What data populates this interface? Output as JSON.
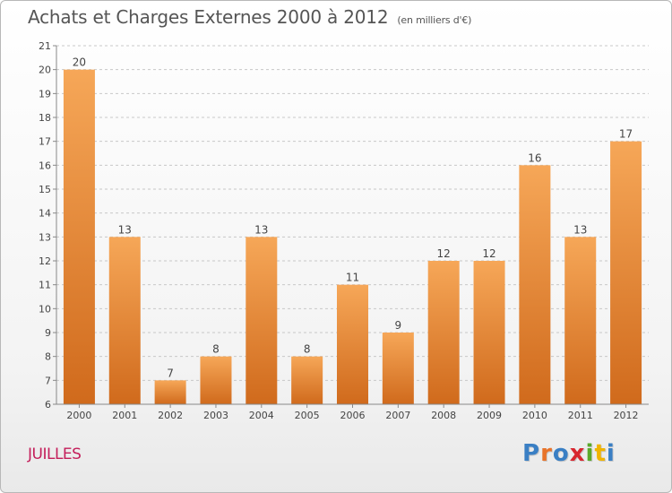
{
  "title": "Achats et Charges Externes 2000 à 2012",
  "subtitle": "(en milliers d'€)",
  "commune": "JUILLES",
  "logo": {
    "text": "Proxiti",
    "colors": [
      "#3a7fc4",
      "#e8732a",
      "#3a7fc4",
      "#d8262f",
      "#5aa92a",
      "#f0b400",
      "#3a7fc4"
    ]
  },
  "colors": {
    "bar_top": "#f6a758",
    "bar_bottom": "#d06a1c",
    "grid": "#c8c8c8",
    "text": "#444444"
  },
  "chart_data": {
    "type": "bar",
    "title": "Achats et Charges Externes 2000 à 2012",
    "subtitle": "(en milliers d'€)",
    "categories": [
      "2000",
      "2001",
      "2002",
      "2003",
      "2004",
      "2005",
      "2006",
      "2007",
      "2008",
      "2009",
      "2010",
      "2011",
      "2012"
    ],
    "values": [
      20,
      13,
      7,
      8,
      13,
      8,
      11,
      9,
      12,
      12,
      16,
      13,
      17
    ],
    "data_labels": [
      "20",
      "13",
      "7",
      "8",
      "13",
      "8",
      "11",
      "9",
      "12",
      "12",
      "16",
      "13",
      "17"
    ],
    "yticks": [
      "6",
      "7",
      "8",
      "9",
      "10",
      "11",
      "12",
      "13",
      "14",
      "15",
      "16",
      "17",
      "18",
      "19",
      "20",
      "21"
    ],
    "ylim": [
      6,
      21
    ],
    "grid": true,
    "legend": "none"
  }
}
